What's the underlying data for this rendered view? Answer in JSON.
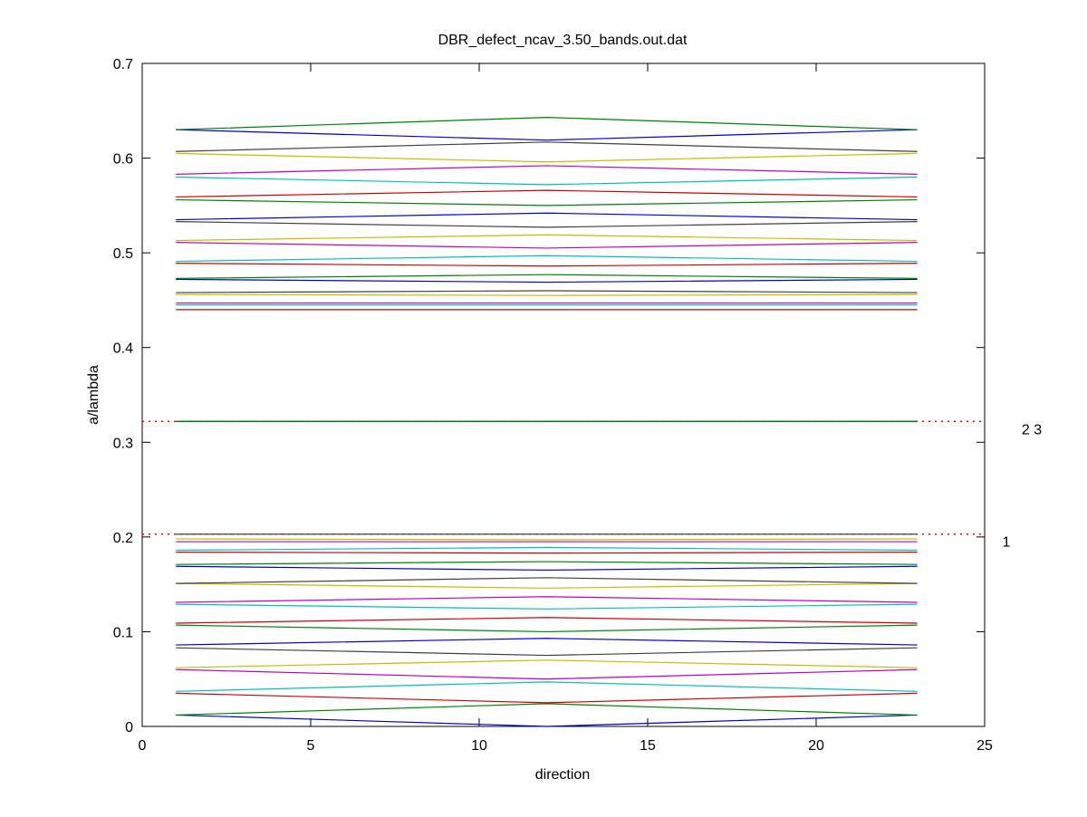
{
  "chart_data": {
    "type": "line",
    "title": "DBR_defect_ncav_3.50_bands.out.dat",
    "xlabel": "direction",
    "ylabel": "a/lambda",
    "xlim": [
      0,
      25
    ],
    "ylim": [
      0,
      0.7
    ],
    "xticks": [
      "0",
      "5",
      "10",
      "15",
      "20",
      "25"
    ],
    "yticks": [
      "0",
      "0.1",
      "0.2",
      "0.3",
      "0.4",
      "0.5",
      "0.6",
      "0.7"
    ],
    "grid": false,
    "legend": "none",
    "x_range": [
      1,
      23
    ],
    "x_mid": 12,
    "bands": [
      {
        "end": 0.012,
        "mid": 0.0,
        "color": "#0000cc"
      },
      {
        "end": 0.012,
        "mid": 0.024,
        "color": "#008000"
      },
      {
        "end": 0.035,
        "mid": 0.025,
        "color": "#cc0000"
      },
      {
        "end": 0.037,
        "mid": 0.047,
        "color": "#00bfbf"
      },
      {
        "end": 0.06,
        "mid": 0.05,
        "color": "#bf00bf"
      },
      {
        "end": 0.062,
        "mid": 0.07,
        "color": "#bfbf00"
      },
      {
        "end": 0.083,
        "mid": 0.075,
        "color": "#404040"
      },
      {
        "end": 0.086,
        "mid": 0.093,
        "color": "#0000cc"
      },
      {
        "end": 0.107,
        "mid": 0.1,
        "color": "#008000"
      },
      {
        "end": 0.109,
        "mid": 0.115,
        "color": "#cc0000"
      },
      {
        "end": 0.129,
        "mid": 0.124,
        "color": "#00bfbf"
      },
      {
        "end": 0.131,
        "mid": 0.137,
        "color": "#bf00bf"
      },
      {
        "end": 0.151,
        "mid": 0.146,
        "color": "#bfbf00"
      },
      {
        "end": 0.151,
        "mid": 0.157,
        "color": "#404040"
      },
      {
        "end": 0.169,
        "mid": 0.165,
        "color": "#0000cc"
      },
      {
        "end": 0.171,
        "mid": 0.174,
        "color": "#008000"
      },
      {
        "end": 0.184,
        "mid": 0.183,
        "color": "#cc0000"
      },
      {
        "end": 0.186,
        "mid": 0.189,
        "color": "#00bfbf"
      },
      {
        "end": 0.195,
        "mid": 0.195,
        "color": "#bf00bf"
      },
      {
        "end": 0.198,
        "mid": 0.197,
        "color": "#bfbf00"
      },
      {
        "end": 0.203,
        "mid": 0.203,
        "color": "#404040"
      },
      {
        "end": 0.322,
        "mid": 0.322,
        "color": "#0000cc"
      },
      {
        "end": 0.322,
        "mid": 0.322,
        "color": "#008000"
      },
      {
        "end": 0.44,
        "mid": 0.44,
        "color": "#cc0000"
      },
      {
        "end": 0.445,
        "mid": 0.445,
        "color": "#00bfbf"
      },
      {
        "end": 0.447,
        "mid": 0.447,
        "color": "#bf00bf"
      },
      {
        "end": 0.456,
        "mid": 0.455,
        "color": "#bfbf00"
      },
      {
        "end": 0.458,
        "mid": 0.46,
        "color": "#404040"
      },
      {
        "end": 0.472,
        "mid": 0.469,
        "color": "#0000cc"
      },
      {
        "end": 0.473,
        "mid": 0.477,
        "color": "#008000"
      },
      {
        "end": 0.489,
        "mid": 0.486,
        "color": "#cc0000"
      },
      {
        "end": 0.491,
        "mid": 0.497,
        "color": "#00bfbf"
      },
      {
        "end": 0.511,
        "mid": 0.505,
        "color": "#bf00bf"
      },
      {
        "end": 0.513,
        "mid": 0.519,
        "color": "#bfbf00"
      },
      {
        "end": 0.533,
        "mid": 0.527,
        "color": "#404040"
      },
      {
        "end": 0.535,
        "mid": 0.542,
        "color": "#0000cc"
      },
      {
        "end": 0.556,
        "mid": 0.55,
        "color": "#008000"
      },
      {
        "end": 0.559,
        "mid": 0.566,
        "color": "#cc0000"
      },
      {
        "end": 0.58,
        "mid": 0.572,
        "color": "#00bfbf"
      },
      {
        "end": 0.583,
        "mid": 0.592,
        "color": "#bf00bf"
      },
      {
        "end": 0.605,
        "mid": 0.596,
        "color": "#bfbf00"
      },
      {
        "end": 0.607,
        "mid": 0.617,
        "color": "#404040"
      },
      {
        "end": 0.63,
        "mid": 0.619,
        "color": "#0000cc"
      },
      {
        "end": 0.63,
        "mid": 0.643,
        "color": "#008000"
      }
    ],
    "reference_lines": [
      {
        "y": 0.322,
        "label": "2 3",
        "color": "#ff0000",
        "style": "dotted"
      },
      {
        "y": 0.203,
        "label": "1",
        "color": "#ff0000",
        "style": "dotted"
      }
    ]
  }
}
